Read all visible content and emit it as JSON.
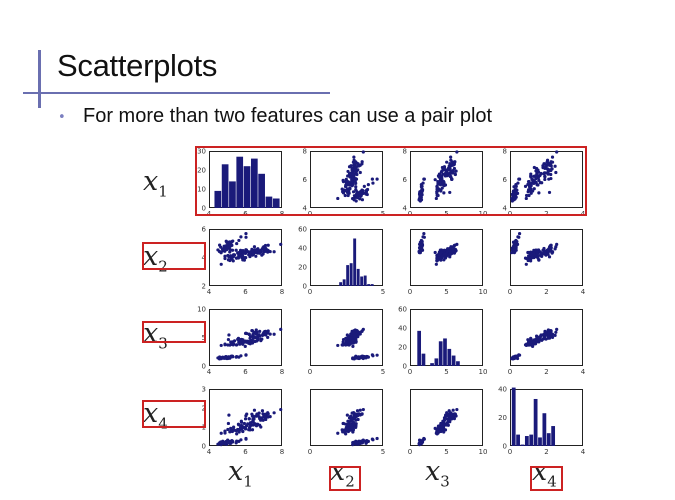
{
  "slide": {
    "title": "Scatterplots",
    "bullet": "For more than two features can use a pair plot"
  },
  "labels": {
    "rows": [
      "x1",
      "x2",
      "x3",
      "x4"
    ],
    "cols": [
      "x1",
      "x2",
      "x3",
      "x4"
    ],
    "base": "x",
    "subs": [
      "1",
      "2",
      "3",
      "4"
    ]
  },
  "colors": {
    "accent_bar": "#6a6fb0",
    "point": "#1a1a7a",
    "highlight": "#cc2222"
  },
  "chart_data": {
    "type": "scatter",
    "title": "",
    "layout": "4x4 pair plot, histograms on diagonal",
    "variables": [
      "x1",
      "x2",
      "x3",
      "x4"
    ],
    "axis_ranges": {
      "x1": [
        4,
        8
      ],
      "x2": [
        0,
        5
      ],
      "x3": [
        0,
        10
      ],
      "x4": [
        0,
        4
      ]
    },
    "ticks": {
      "x1": [
        "4",
        "6",
        "8"
      ],
      "x2": [
        "0",
        "5"
      ],
      "x3": [
        "0",
        "5",
        "10"
      ],
      "x4": [
        "0",
        "2",
        "4"
      ],
      "x2_y": [
        "2",
        "4",
        "6"
      ],
      "x3_y": [
        "0",
        "5",
        "10"
      ],
      "x4_y": [
        "0",
        "1",
        "2",
        "3"
      ]
    },
    "histograms": {
      "x1": {
        "ylim": [
          0,
          30
        ],
        "yticks": [
          "0",
          "10",
          "20",
          "30"
        ],
        "bins": [
          4.3,
          4.7,
          5.1,
          5.5,
          5.9,
          6.3,
          6.7,
          7.1,
          7.5,
          7.9
        ],
        "counts": [
          9,
          23,
          14,
          27,
          22,
          26,
          18,
          6,
          5
        ]
      },
      "x2": {
        "ylim": [
          0,
          60
        ],
        "yticks": [
          "0",
          "20",
          "40",
          "60"
        ],
        "bins": [
          2.0,
          2.24,
          2.48,
          2.72,
          2.96,
          3.2,
          3.44,
          3.68,
          3.92,
          4.16,
          4.4
        ],
        "counts": [
          4,
          7,
          22,
          24,
          50,
          18,
          10,
          11,
          2,
          2
        ]
      },
      "x3": {
        "ylim": [
          0,
          60
        ],
        "yticks": [
          "0",
          "20",
          "40",
          "60"
        ],
        "bins": [
          1.0,
          1.59,
          2.18,
          2.77,
          3.36,
          3.95,
          4.54,
          5.13,
          5.72,
          6.31,
          6.9
        ],
        "counts": [
          37,
          13,
          0,
          3,
          8,
          26,
          29,
          18,
          11,
          5
        ]
      },
      "x4": {
        "ylim": [
          0,
          40
        ],
        "yticks": [
          "0",
          "20",
          "40"
        ],
        "bins": [
          0.1,
          0.34,
          0.58,
          0.82,
          1.06,
          1.3,
          1.54,
          1.78,
          2.02,
          2.26,
          2.5
        ],
        "counts": [
          41,
          8,
          1,
          7,
          8,
          33,
          6,
          23,
          9,
          14
        ]
      }
    },
    "clusters": [
      {
        "n": 50,
        "mean": [
          5.0,
          3.4,
          1.5,
          0.25
        ],
        "sd": [
          0.35,
          0.38,
          0.17,
          0.1
        ]
      },
      {
        "n": 50,
        "mean": [
          5.9,
          2.8,
          4.3,
          1.3
        ],
        "sd": [
          0.5,
          0.31,
          0.47,
          0.2
        ]
      },
      {
        "n": 50,
        "mean": [
          6.6,
          3.0,
          5.55,
          2.0
        ],
        "sd": [
          0.63,
          0.32,
          0.55,
          0.27
        ]
      }
    ],
    "highlights": [
      "row x1",
      "row label x2",
      "row label x3",
      "row label x4",
      "col label x2",
      "col label x4"
    ]
  }
}
